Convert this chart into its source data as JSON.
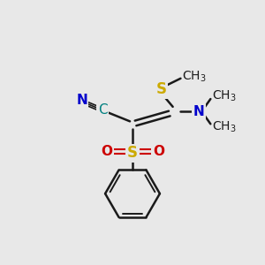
{
  "bg_color": "#e8e8e8",
  "bond_color": "#1a1a1a",
  "sulfur_color": "#ccaa00",
  "nitrogen_color": "#0000cc",
  "oxygen_color": "#cc0000",
  "carbon_color": "#1a1a1a",
  "cyan_color": "#008080",
  "figsize": [
    3.0,
    3.0
  ],
  "dpi": 100,
  "xlim": [
    0,
    10
  ],
  "ylim": [
    0,
    10
  ]
}
